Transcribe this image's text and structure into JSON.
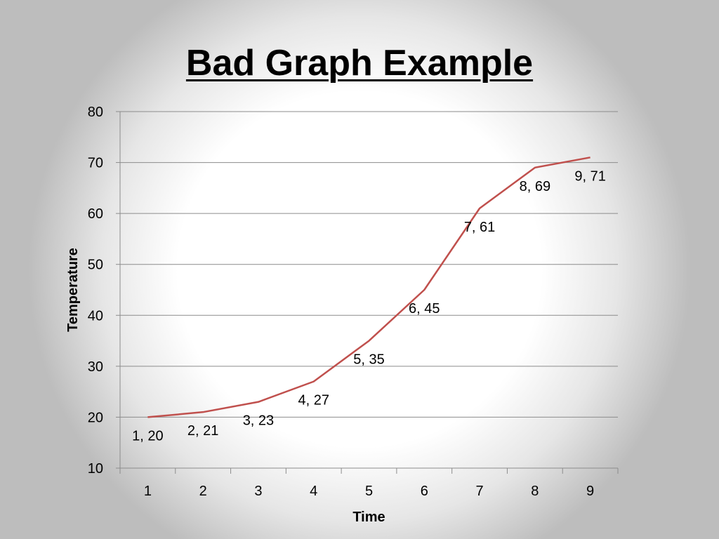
{
  "slide": {
    "title": "Bad Graph Example"
  },
  "chart_data": {
    "type": "line",
    "title": "",
    "xlabel": "Time",
    "ylabel": "Temperature",
    "x": [
      1,
      2,
      3,
      4,
      5,
      6,
      7,
      8,
      9
    ],
    "categories": [
      "1",
      "2",
      "3",
      "4",
      "5",
      "6",
      "7",
      "8",
      "9"
    ],
    "series": [
      {
        "values": [
          20,
          21,
          23,
          27,
          35,
          45,
          61,
          69,
          71
        ]
      }
    ],
    "data_labels": [
      "1, 20",
      "2, 21",
      "3, 23",
      "4, 27",
      "5, 35",
      "6, 45",
      "7, 61",
      "8, 69",
      "9, 71"
    ],
    "ylim": [
      10,
      80
    ],
    "yticks": [
      10,
      20,
      30,
      40,
      50,
      60,
      70,
      80
    ],
    "grid": true,
    "legend": "none",
    "line_color": "#c0504d",
    "grid_color": "#8c8c8c"
  }
}
